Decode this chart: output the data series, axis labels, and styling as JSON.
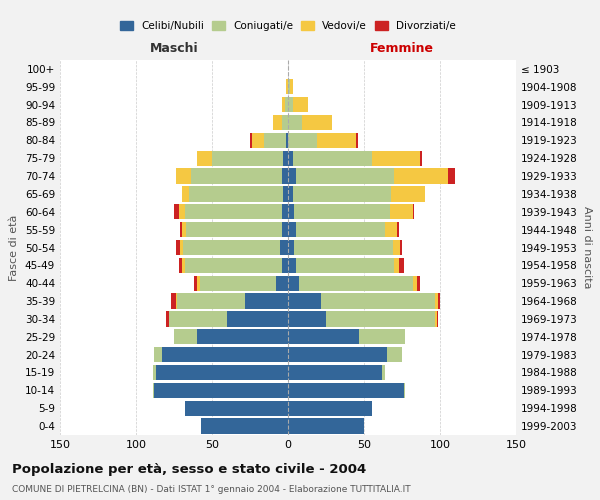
{
  "age_groups": [
    "0-4",
    "5-9",
    "10-14",
    "15-19",
    "20-24",
    "25-29",
    "30-34",
    "35-39",
    "40-44",
    "45-49",
    "50-54",
    "55-59",
    "60-64",
    "65-69",
    "70-74",
    "75-79",
    "80-84",
    "85-89",
    "90-94",
    "95-99",
    "100+"
  ],
  "birth_years": [
    "1999-2003",
    "1994-1998",
    "1989-1993",
    "1984-1988",
    "1979-1983",
    "1974-1978",
    "1969-1973",
    "1964-1968",
    "1959-1963",
    "1954-1958",
    "1949-1953",
    "1944-1948",
    "1939-1943",
    "1934-1938",
    "1929-1933",
    "1924-1928",
    "1919-1923",
    "1914-1918",
    "1909-1913",
    "1904-1908",
    "≤ 1903"
  ],
  "maschi": {
    "celibi": [
      57,
      68,
      88,
      87,
      83,
      60,
      40,
      28,
      8,
      4,
      5,
      4,
      4,
      3,
      4,
      3,
      1,
      0,
      0,
      0,
      0
    ],
    "coniugati": [
      0,
      0,
      1,
      2,
      5,
      15,
      38,
      45,
      50,
      64,
      64,
      63,
      64,
      62,
      60,
      47,
      15,
      4,
      2,
      0,
      0
    ],
    "vedovi": [
      0,
      0,
      0,
      0,
      0,
      0,
      0,
      1,
      2,
      2,
      2,
      3,
      4,
      5,
      10,
      10,
      8,
      6,
      2,
      1,
      0
    ],
    "divorziati": [
      0,
      0,
      0,
      0,
      0,
      0,
      2,
      3,
      2,
      2,
      3,
      1,
      3,
      0,
      0,
      0,
      1,
      0,
      0,
      0,
      0
    ]
  },
  "femmine": {
    "nubili": [
      50,
      55,
      76,
      62,
      65,
      47,
      25,
      22,
      7,
      5,
      4,
      5,
      4,
      3,
      5,
      3,
      0,
      0,
      0,
      0,
      0
    ],
    "coniugate": [
      0,
      0,
      1,
      2,
      10,
      30,
      72,
      75,
      75,
      65,
      65,
      59,
      63,
      65,
      65,
      52,
      19,
      9,
      3,
      1,
      0
    ],
    "vedove": [
      0,
      0,
      0,
      0,
      0,
      0,
      1,
      2,
      3,
      3,
      5,
      8,
      15,
      22,
      35,
      32,
      26,
      20,
      10,
      2,
      0
    ],
    "divorziate": [
      0,
      0,
      0,
      0,
      0,
      0,
      1,
      1,
      2,
      3,
      1,
      1,
      1,
      0,
      5,
      1,
      1,
      0,
      0,
      0,
      0
    ]
  },
  "colors": {
    "celibi": "#336699",
    "coniugati": "#b5cc8e",
    "vedovi": "#f5c842",
    "divorziati": "#cc2222"
  },
  "title": "Popolazione per età, sesso e stato civile - 2004",
  "subtitle": "COMUNE DI PIETRELCINA (BN) - Dati ISTAT 1° gennaio 2004 - Elaborazione TUTTITALIA.IT",
  "xlabel_left": "Maschi",
  "xlabel_right": "Femmine",
  "ylabel_left": "Fasce di età",
  "ylabel_right": "Anni di nascita",
  "xlim": 150,
  "bg_color": "#f2f2f2",
  "plot_bg_color": "#ffffff"
}
